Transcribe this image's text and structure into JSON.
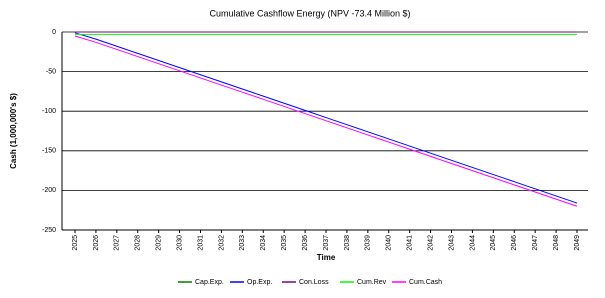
{
  "chart_data": {
    "type": "line",
    "title": "Cumulative Cashflow Energy  (NPV -73.4 Million $)",
    "x_label": "Time",
    "y_label": "Cash (1,000,000's $)",
    "categories": [
      "2025",
      "2026",
      "2027",
      "2028",
      "2029",
      "2030",
      "2031",
      "2032",
      "2033",
      "2034",
      "2035",
      "2036",
      "2037",
      "2038",
      "2039",
      "2040",
      "2041",
      "2042",
      "2043",
      "2044",
      "2045",
      "2046",
      "2047",
      "2048",
      "2049"
    ],
    "series": [
      {
        "name": "Cap.Exp.",
        "color": "#008000",
        "values": [
          0,
          0,
          0,
          0,
          0,
          0,
          0,
          0,
          0,
          0,
          0,
          0,
          0,
          0,
          0,
          0,
          0,
          0,
          0,
          0,
          0,
          0,
          0,
          0,
          0
        ]
      },
      {
        "name": "Op.Exp.",
        "color": "#0000ff",
        "values": [
          -1,
          -9,
          -18,
          -27,
          -36,
          -45,
          -54,
          -63,
          -72,
          -81,
          -90,
          -99,
          -108,
          -117,
          -126,
          -135,
          -144,
          -153,
          -162,
          -171,
          -180,
          -189,
          -198,
          -207,
          -216
        ]
      },
      {
        "name": "Con.Loss",
        "color": "#800080",
        "values": [
          0,
          0,
          0,
          0,
          0,
          0,
          0,
          0,
          0,
          0,
          0,
          0,
          0,
          0,
          0,
          0,
          0,
          0,
          0,
          0,
          0,
          0,
          0,
          0,
          0
        ]
      },
      {
        "name": "Cum.Rev",
        "color": "#00ff00",
        "values": [
          -3,
          -3,
          -3,
          -3,
          -3,
          -3,
          -3,
          -3,
          -3,
          -3,
          -3,
          -3,
          -3,
          -3,
          -3,
          -3,
          -3,
          -3,
          -3,
          -3,
          -3,
          -3,
          -3,
          -3,
          -3
        ]
      },
      {
        "name": "Cum.Cash",
        "color": "#ff00ff",
        "values": [
          -5,
          -13,
          -22,
          -31,
          -40,
          -49,
          -58,
          -67,
          -76,
          -85,
          -94,
          -103,
          -112,
          -121,
          -130,
          -139,
          -148,
          -157,
          -166,
          -175,
          -184,
          -193,
          -202,
          -211,
          -220
        ]
      }
    ],
    "ylim": [
      -250,
      0
    ],
    "yticks": [
      0,
      -50,
      -100,
      -150,
      -200,
      -250
    ],
    "grid": true
  }
}
